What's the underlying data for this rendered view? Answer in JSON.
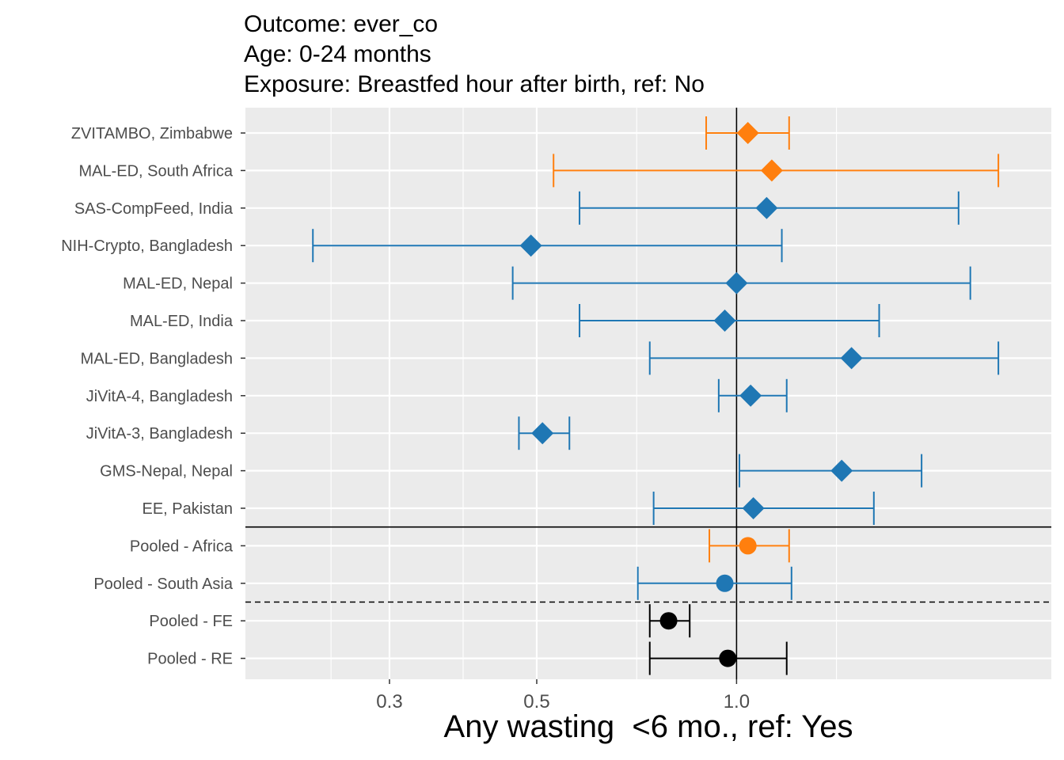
{
  "chart_data": {
    "type": "forest",
    "title": [
      "Outcome: ever_co",
      "Age: 0-24 months",
      "Exposure: Breastfed hour after birth, ref: No"
    ],
    "xlabel": "Any wasting  <6 mo., ref: Yes",
    "x_scale": "log",
    "xlim": [
      0.182,
      2.98
    ],
    "x_ticks": [
      {
        "value": 0.3,
        "label": "0.3"
      },
      {
        "value": 0.5,
        "label": "0.5"
      },
      {
        "value": 1.0,
        "label": "1.0"
      }
    ],
    "reference_line": 1.0,
    "studies": [
      {
        "label": "ZVITAMBO, Zimbabwe",
        "estimate": 1.04,
        "lower": 0.9,
        "upper": 1.2,
        "region": "Africa",
        "shape": "diamond"
      },
      {
        "label": "MAL-ED, South Africa",
        "estimate": 1.13,
        "lower": 0.53,
        "upper": 2.48,
        "region": "Africa",
        "shape": "diamond"
      },
      {
        "label": "SAS-CompFeed, India",
        "estimate": 1.11,
        "lower": 0.58,
        "upper": 2.16,
        "region": "South Asia",
        "shape": "diamond"
      },
      {
        "label": "NIH-Crypto, Bangladesh",
        "estimate": 0.49,
        "lower": 0.23,
        "upper": 1.17,
        "region": "South Asia",
        "shape": "diamond"
      },
      {
        "label": "MAL-ED, Nepal",
        "estimate": 1.0,
        "lower": 0.46,
        "upper": 2.25,
        "region": "South Asia",
        "shape": "diamond"
      },
      {
        "label": "MAL-ED, India",
        "estimate": 0.96,
        "lower": 0.58,
        "upper": 1.64,
        "region": "South Asia",
        "shape": "diamond"
      },
      {
        "label": "MAL-ED, Bangladesh",
        "estimate": 1.49,
        "lower": 0.74,
        "upper": 2.48,
        "region": "South Asia",
        "shape": "diamond"
      },
      {
        "label": "JiVitA-4, Bangladesh",
        "estimate": 1.05,
        "lower": 0.94,
        "upper": 1.19,
        "region": "South Asia",
        "shape": "diamond"
      },
      {
        "label": "JiVitA-3, Bangladesh",
        "estimate": 0.51,
        "lower": 0.47,
        "upper": 0.56,
        "region": "South Asia",
        "shape": "diamond"
      },
      {
        "label": "GMS-Nepal, Nepal",
        "estimate": 1.44,
        "lower": 1.01,
        "upper": 1.9,
        "region": "South Asia",
        "shape": "diamond"
      },
      {
        "label": "EE, Pakistan",
        "estimate": 1.06,
        "lower": 0.75,
        "upper": 1.61,
        "region": "South Asia",
        "shape": "diamond"
      }
    ],
    "pooled": [
      {
        "label": "Pooled - Africa",
        "estimate": 1.04,
        "lower": 0.91,
        "upper": 1.2,
        "region": "Africa",
        "shape": "circle"
      },
      {
        "label": "Pooled - South Asia",
        "estimate": 0.96,
        "lower": 0.71,
        "upper": 1.21,
        "region": "South Asia",
        "shape": "circle"
      },
      {
        "label": "Pooled - FE",
        "estimate": 0.79,
        "lower": 0.74,
        "upper": 0.85,
        "region": "Overall",
        "shape": "circle"
      },
      {
        "label": "Pooled - RE",
        "estimate": 0.97,
        "lower": 0.74,
        "upper": 1.19,
        "region": "Overall",
        "shape": "circle"
      }
    ],
    "colors": {
      "Africa": "#FF7F0E",
      "South Asia": "#1F77B4",
      "Overall": "#000000",
      "panel_background": "#EBEBEB",
      "grid": "#FFFFFF"
    }
  }
}
